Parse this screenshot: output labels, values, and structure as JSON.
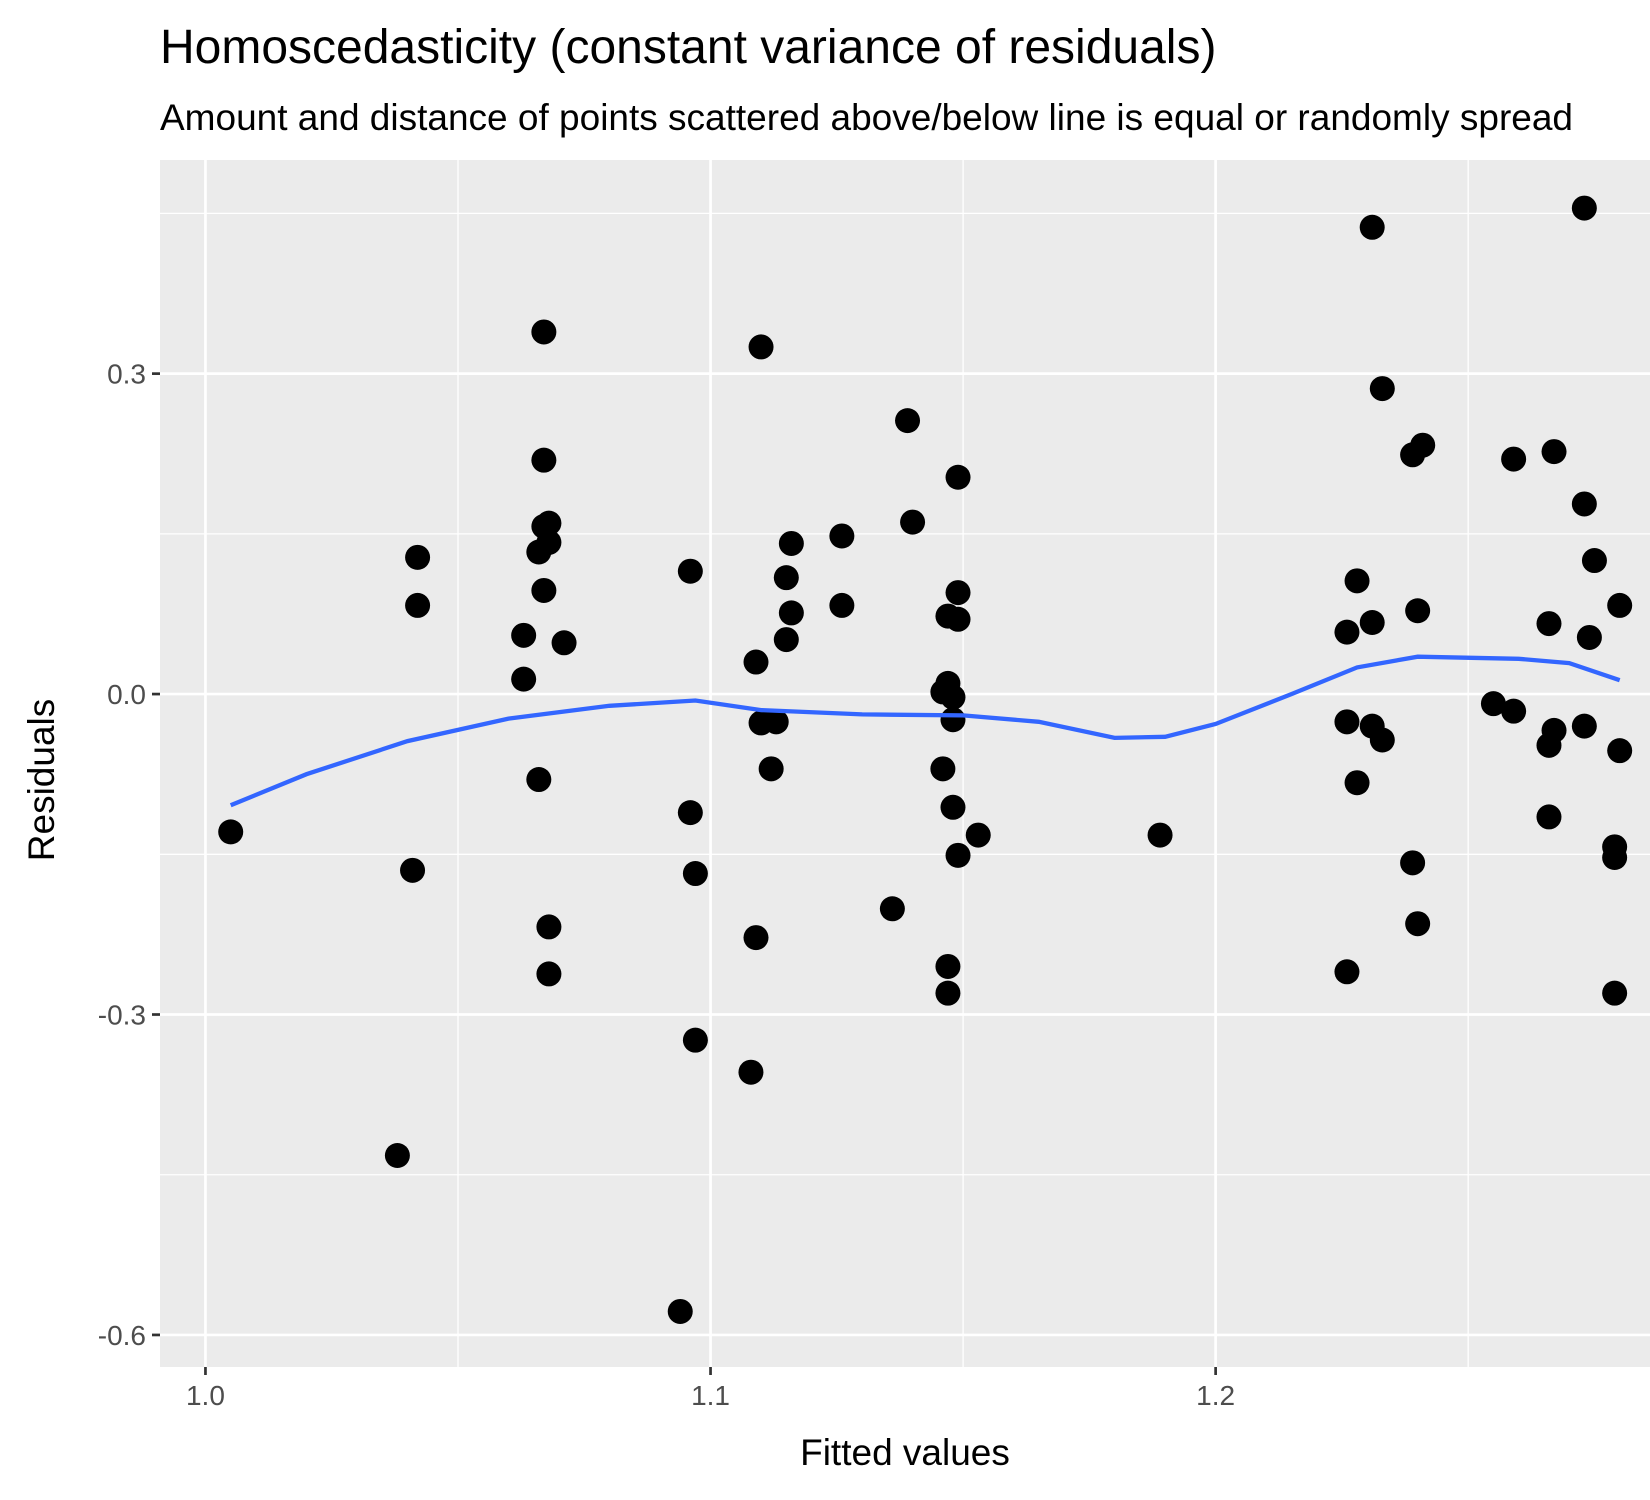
{
  "chart_data": {
    "type": "scatter",
    "title": "Homoscedasticity (constant variance of residuals)",
    "subtitle": "Amount and distance of points scattered above/below line is equal or randomly spread",
    "xlabel": "Fitted values",
    "ylabel": "Residuals",
    "xlim": [
      0.991,
      1.286
    ],
    "ylim": [
      -0.63,
      0.5
    ],
    "x_ticks": [
      1.0,
      1.1,
      1.2
    ],
    "x_tick_labels": [
      "1.0",
      "1.1",
      "1.2"
    ],
    "y_ticks": [
      -0.6,
      -0.3,
      0.0,
      0.3
    ],
    "y_tick_labels": [
      "-0.6",
      "-0.3",
      "0.0",
      "0.3"
    ],
    "grid": true,
    "colors": {
      "panel_background": "#ebebeb",
      "grid_major": "#ffffff",
      "points": "#000000",
      "smooth_line": "#3366ff",
      "tick_labels": "#4d4d4d"
    },
    "points": [
      [
        1.005,
        -0.129
      ],
      [
        1.038,
        -0.432
      ],
      [
        1.041,
        -0.165
      ],
      [
        1.042,
        0.128
      ],
      [
        1.042,
        0.083
      ],
      [
        1.063,
        0.055
      ],
      [
        1.063,
        0.014
      ],
      [
        1.067,
        0.339
      ],
      [
        1.067,
        0.219
      ],
      [
        1.067,
        0.157
      ],
      [
        1.066,
        0.133
      ],
      [
        1.068,
        0.142
      ],
      [
        1.068,
        0.16
      ],
      [
        1.067,
        0.097
      ],
      [
        1.071,
        0.048
      ],
      [
        1.066,
        -0.08
      ],
      [
        1.068,
        -0.218
      ],
      [
        1.068,
        -0.262
      ],
      [
        1.094,
        -0.578
      ],
      [
        1.096,
        -0.111
      ],
      [
        1.097,
        -0.168
      ],
      [
        1.097,
        -0.324
      ],
      [
        1.096,
        0.115
      ],
      [
        1.108,
        -0.354
      ],
      [
        1.109,
        -0.228
      ],
      [
        1.11,
        0.325
      ],
      [
        1.109,
        0.03
      ],
      [
        1.11,
        -0.027
      ],
      [
        1.113,
        -0.026
      ],
      [
        1.112,
        -0.07
      ],
      [
        1.115,
        0.051
      ],
      [
        1.115,
        0.109
      ],
      [
        1.116,
        0.076
      ],
      [
        1.116,
        0.141
      ],
      [
        1.126,
        0.148
      ],
      [
        1.126,
        0.083
      ],
      [
        1.136,
        -0.201
      ],
      [
        1.139,
        0.256
      ],
      [
        1.14,
        0.161
      ],
      [
        1.146,
        0.002
      ],
      [
        1.147,
        0.01
      ],
      [
        1.148,
        -0.003
      ],
      [
        1.147,
        0.073
      ],
      [
        1.149,
        0.07
      ],
      [
        1.149,
        0.095
      ],
      [
        1.149,
        0.203
      ],
      [
        1.148,
        -0.024
      ],
      [
        1.146,
        -0.07
      ],
      [
        1.148,
        -0.106
      ],
      [
        1.149,
        -0.151
      ],
      [
        1.153,
        -0.132
      ],
      [
        1.147,
        -0.255
      ],
      [
        1.147,
        -0.28
      ],
      [
        1.189,
        -0.132
      ],
      [
        1.226,
        -0.026
      ],
      [
        1.226,
        0.058
      ],
      [
        1.228,
        0.106
      ],
      [
        1.231,
        0.067
      ],
      [
        1.231,
        -0.03
      ],
      [
        1.233,
        -0.043
      ],
      [
        1.228,
        -0.083
      ],
      [
        1.226,
        -0.26
      ],
      [
        1.231,
        0.437
      ],
      [
        1.233,
        0.286
      ],
      [
        1.239,
        0.224
      ],
      [
        1.241,
        0.233
      ],
      [
        1.24,
        0.078
      ],
      [
        1.239,
        -0.158
      ],
      [
        1.24,
        -0.215
      ],
      [
        1.255,
        -0.009
      ],
      [
        1.259,
        -0.016
      ],
      [
        1.259,
        0.22
      ],
      [
        1.266,
        0.066
      ],
      [
        1.267,
        0.227
      ],
      [
        1.267,
        -0.034
      ],
      [
        1.266,
        -0.048
      ],
      [
        1.266,
        -0.115
      ],
      [
        1.273,
        0.455
      ],
      [
        1.273,
        0.178
      ],
      [
        1.275,
        0.125
      ],
      [
        1.274,
        0.053
      ],
      [
        1.273,
        -0.03
      ],
      [
        1.28,
        0.083
      ],
      [
        1.28,
        -0.053
      ],
      [
        1.279,
        -0.143
      ],
      [
        1.279,
        -0.153
      ],
      [
        1.279,
        -0.28
      ]
    ],
    "smooth_line": [
      [
        1.005,
        -0.104
      ],
      [
        1.02,
        -0.075
      ],
      [
        1.04,
        -0.044
      ],
      [
        1.06,
        -0.023
      ],
      [
        1.08,
        -0.011
      ],
      [
        1.097,
        -0.006
      ],
      [
        1.11,
        -0.015
      ],
      [
        1.13,
        -0.019
      ],
      [
        1.15,
        -0.02
      ],
      [
        1.165,
        -0.026
      ],
      [
        1.18,
        -0.041
      ],
      [
        1.19,
        -0.04
      ],
      [
        1.2,
        -0.028
      ],
      [
        1.215,
        0.0
      ],
      [
        1.228,
        0.025
      ],
      [
        1.24,
        0.035
      ],
      [
        1.26,
        0.033
      ],
      [
        1.27,
        0.029
      ],
      [
        1.28,
        0.013
      ]
    ]
  }
}
